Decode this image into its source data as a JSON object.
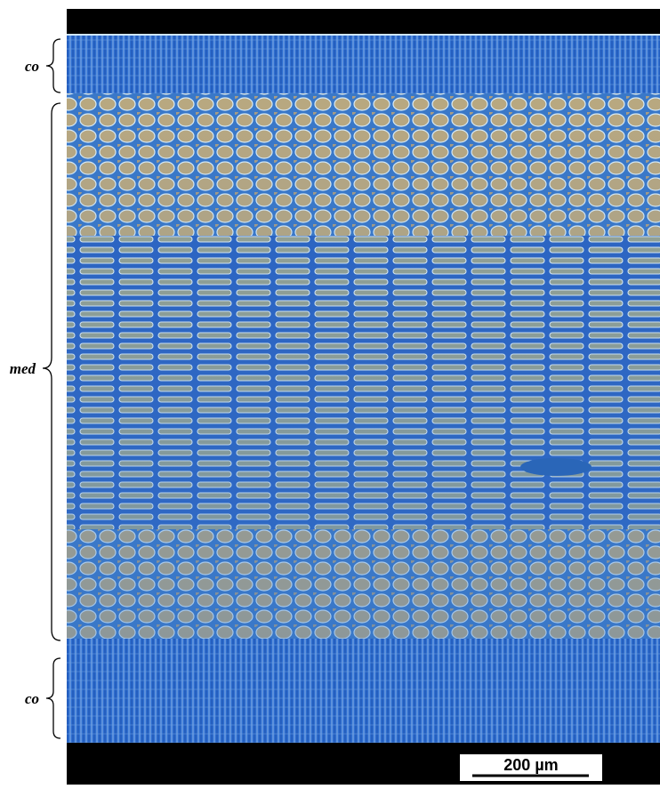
{
  "labels": {
    "top": "co",
    "middle": "med",
    "bottom": "co"
  },
  "scale_bar": "200 µm"
}
